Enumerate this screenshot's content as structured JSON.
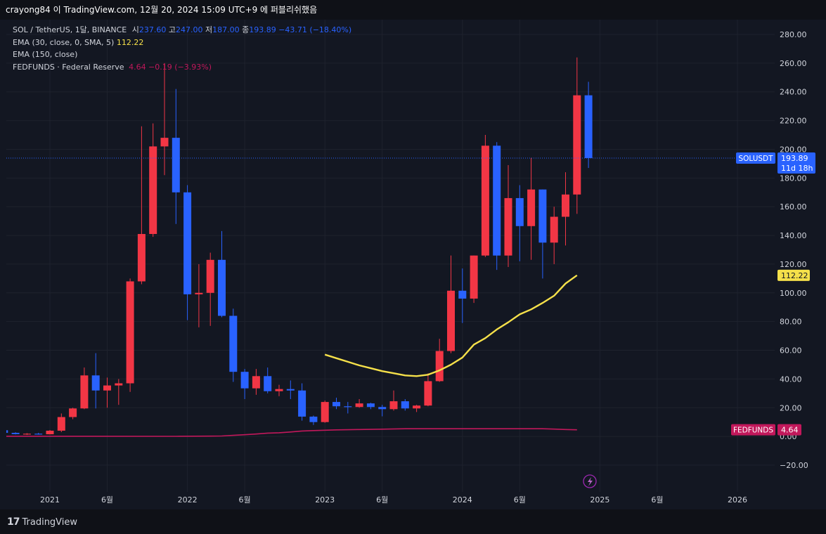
{
  "header": {
    "publisher_text": "crayong84 이 TradingView.com, 12월 20, 2024 15:09 UTC+9 에 퍼블리쉬했음"
  },
  "legend": {
    "symbol": "SOL / TetherUS, 1달, BINANCE",
    "open_label": "시",
    "open_value": "237.60",
    "high_label": "고",
    "high_value": "247.00",
    "low_label": "저",
    "low_value": "187.00",
    "close_label": "종",
    "close_value": "193.89",
    "change_value": "−43.71 (−18.40%)",
    "ema30_label": "EMA (30, close, 0, SMA, 5)",
    "ema30_value": "112.22",
    "ema150_label": "EMA (150, close)",
    "fed_label": "FEDFUNDS · Federal Reserve",
    "fed_value": "4.64",
    "fed_change": "−0.19 (−3.93%)"
  },
  "footer": {
    "brand": "TradingView"
  },
  "colors": {
    "up": "#f23645",
    "down": "#2962ff",
    "ema": "#f5e04a",
    "fed": "#c2185b",
    "grid": "#1e222d",
    "axis_text": "#d1d4dc"
  },
  "chart_data": {
    "type": "candlestick",
    "symbol": "SOLUSDT",
    "interval": "1 month",
    "ylim": [
      -25,
      295
    ],
    "y_ticks": [
      -20,
      0,
      20,
      40,
      60,
      80,
      100,
      120,
      140,
      160,
      180,
      200,
      220,
      240,
      260,
      280
    ],
    "y_tick_labels": [
      "−20.00",
      "0.00",
      "20.00",
      "40.00",
      "60.00",
      "80.00",
      "100.00",
      "120.00",
      "140.00",
      "160.00",
      "180.00",
      "200.00",
      "220.00",
      "240.00",
      "260.00",
      "280.00"
    ],
    "x_ticks": [
      {
        "label": "2021",
        "month": "2021-01"
      },
      {
        "label": "6월",
        "month": "2021-06"
      },
      {
        "label": "2022",
        "month": "2022-01"
      },
      {
        "label": "6월",
        "month": "2022-06"
      },
      {
        "label": "2023",
        "month": "2023-01"
      },
      {
        "label": "6월",
        "month": "2023-06"
      },
      {
        "label": "2024",
        "month": "2024-01"
      },
      {
        "label": "6월",
        "month": "2024-06"
      },
      {
        "label": "2025",
        "month": "2025-01"
      },
      {
        "label": "6월",
        "month": "2025-06"
      },
      {
        "label": "2026",
        "month": "2026-01"
      }
    ],
    "candles": [
      {
        "month": "2020-09",
        "o": 4.3,
        "h": 4.8,
        "l": 2.0,
        "c": 2.5
      },
      {
        "month": "2020-10",
        "o": 2.5,
        "h": 2.9,
        "l": 1.4,
        "c": 1.6
      },
      {
        "month": "2020-11",
        "o": 1.6,
        "h": 2.3,
        "l": 1.0,
        "c": 1.9
      },
      {
        "month": "2020-12",
        "o": 1.9,
        "h": 2.5,
        "l": 1.2,
        "c": 1.5
      },
      {
        "month": "2021-01",
        "o": 1.5,
        "h": 4.5,
        "l": 1.4,
        "c": 4.0
      },
      {
        "month": "2021-02",
        "o": 4.0,
        "h": 16.0,
        "l": 3.0,
        "c": 13.5
      },
      {
        "month": "2021-03",
        "o": 13.5,
        "h": 20.0,
        "l": 12.0,
        "c": 19.5
      },
      {
        "month": "2021-04",
        "o": 19.5,
        "h": 48.0,
        "l": 19.0,
        "c": 42.5
      },
      {
        "month": "2021-05",
        "o": 42.5,
        "h": 58.0,
        "l": 19.5,
        "c": 32.0
      },
      {
        "month": "2021-06",
        "o": 32.0,
        "h": 41.0,
        "l": 20.0,
        "c": 35.5
      },
      {
        "month": "2021-07",
        "o": 35.5,
        "h": 40.0,
        "l": 22.0,
        "c": 37.0
      },
      {
        "month": "2021-08",
        "o": 37.0,
        "h": 110.0,
        "l": 31.0,
        "c": 108.0
      },
      {
        "month": "2021-09",
        "o": 108.0,
        "h": 216.0,
        "l": 106.0,
        "c": 141.0
      },
      {
        "month": "2021-10",
        "o": 141.0,
        "h": 218.0,
        "l": 139.0,
        "c": 202.0
      },
      {
        "month": "2021-11",
        "o": 202.0,
        "h": 260.0,
        "l": 182.0,
        "c": 208.0
      },
      {
        "month": "2021-12",
        "o": 208.0,
        "h": 242.0,
        "l": 148.0,
        "c": 170.0
      },
      {
        "month": "2022-01",
        "o": 170.0,
        "h": 175.0,
        "l": 81.0,
        "c": 99.0
      },
      {
        "month": "2022-02",
        "o": 99.0,
        "h": 120.0,
        "l": 76.0,
        "c": 100.0
      },
      {
        "month": "2022-03",
        "o": 100.0,
        "h": 128.0,
        "l": 77.0,
        "c": 123.0
      },
      {
        "month": "2022-04",
        "o": 123.0,
        "h": 143.0,
        "l": 83.0,
        "c": 84.0
      },
      {
        "month": "2022-05",
        "o": 84.0,
        "h": 89.0,
        "l": 38.0,
        "c": 45.0
      },
      {
        "month": "2022-06",
        "o": 45.0,
        "h": 47.0,
        "l": 26.0,
        "c": 33.5
      },
      {
        "month": "2022-07",
        "o": 33.5,
        "h": 47.0,
        "l": 29.0,
        "c": 42.0
      },
      {
        "month": "2022-08",
        "o": 42.0,
        "h": 48.0,
        "l": 30.0,
        "c": 31.5
      },
      {
        "month": "2022-09",
        "o": 31.5,
        "h": 36.0,
        "l": 28.0,
        "c": 33.0
      },
      {
        "month": "2022-10",
        "o": 33.0,
        "h": 39.0,
        "l": 26.0,
        "c": 32.0
      },
      {
        "month": "2022-11",
        "o": 32.0,
        "h": 37.0,
        "l": 11.0,
        "c": 13.8
      },
      {
        "month": "2022-12",
        "o": 13.8,
        "h": 14.5,
        "l": 8.0,
        "c": 10.0
      },
      {
        "month": "2023-01",
        "o": 10.0,
        "h": 25.0,
        "l": 9.5,
        "c": 24.0
      },
      {
        "month": "2023-02",
        "o": 24.0,
        "h": 27.0,
        "l": 19.0,
        "c": 21.0
      },
      {
        "month": "2023-03",
        "o": 21.0,
        "h": 24.0,
        "l": 16.0,
        "c": 20.5
      },
      {
        "month": "2023-04",
        "o": 20.5,
        "h": 26.0,
        "l": 20.0,
        "c": 23.0
      },
      {
        "month": "2023-05",
        "o": 23.0,
        "h": 23.5,
        "l": 19.0,
        "c": 20.5
      },
      {
        "month": "2023-06",
        "o": 20.5,
        "h": 22.0,
        "l": 14.0,
        "c": 19.0
      },
      {
        "month": "2023-07",
        "o": 19.0,
        "h": 32.0,
        "l": 18.0,
        "c": 24.5
      },
      {
        "month": "2023-08",
        "o": 24.5,
        "h": 26.0,
        "l": 18.0,
        "c": 19.5
      },
      {
        "month": "2023-09",
        "o": 19.5,
        "h": 22.0,
        "l": 17.0,
        "c": 21.5
      },
      {
        "month": "2023-10",
        "o": 21.5,
        "h": 44.0,
        "l": 21.0,
        "c": 38.5
      },
      {
        "month": "2023-11",
        "o": 38.5,
        "h": 68.0,
        "l": 38.0,
        "c": 59.5
      },
      {
        "month": "2023-12",
        "o": 59.5,
        "h": 126.0,
        "l": 58.0,
        "c": 101.5
      },
      {
        "month": "2024-01",
        "o": 101.5,
        "h": 117.0,
        "l": 79.0,
        "c": 96.0
      },
      {
        "month": "2024-02",
        "o": 96.0,
        "h": 126.0,
        "l": 93.0,
        "c": 126.0
      },
      {
        "month": "2024-03",
        "o": 126.0,
        "h": 210.0,
        "l": 125.0,
        "c": 202.5
      },
      {
        "month": "2024-04",
        "o": 202.5,
        "h": 205.0,
        "l": 116.0,
        "c": 126.0
      },
      {
        "month": "2024-05",
        "o": 126.0,
        "h": 189.0,
        "l": 118.0,
        "c": 166.0
      },
      {
        "month": "2024-06",
        "o": 166.0,
        "h": 175.0,
        "l": 122.0,
        "c": 146.5
      },
      {
        "month": "2024-07",
        "o": 146.5,
        "h": 194.0,
        "l": 123.0,
        "c": 172.0
      },
      {
        "month": "2024-08",
        "o": 172.0,
        "h": 172.0,
        "l": 110.0,
        "c": 135.0
      },
      {
        "month": "2024-09",
        "o": 135.0,
        "h": 160.0,
        "l": 120.0,
        "c": 153.0
      },
      {
        "month": "2024-10",
        "o": 153.0,
        "h": 184.0,
        "l": 133.0,
        "c": 168.5
      },
      {
        "month": "2024-11",
        "o": 168.5,
        "h": 264.0,
        "l": 155.0,
        "c": 237.6
      },
      {
        "month": "2024-12",
        "o": 237.6,
        "h": 247.0,
        "l": 187.0,
        "c": 193.89
      }
    ],
    "series": [
      {
        "name": "EMA (30, close, 0, SMA, 5)",
        "color": "#f5e04a",
        "points": [
          {
            "month": "2023-01",
            "v": 57.0
          },
          {
            "month": "2023-02",
            "v": 54.5
          },
          {
            "month": "2023-03",
            "v": 52.0
          },
          {
            "month": "2023-04",
            "v": 49.5
          },
          {
            "month": "2023-05",
            "v": 47.5
          },
          {
            "month": "2023-06",
            "v": 45.5
          },
          {
            "month": "2023-07",
            "v": 44.0
          },
          {
            "month": "2023-08",
            "v": 42.5
          },
          {
            "month": "2023-09",
            "v": 42.0
          },
          {
            "month": "2023-10",
            "v": 43.0
          },
          {
            "month": "2023-11",
            "v": 46.0
          },
          {
            "month": "2023-12",
            "v": 50.0
          },
          {
            "month": "2024-01",
            "v": 55.0
          },
          {
            "month": "2024-02",
            "v": 64.0
          },
          {
            "month": "2024-03",
            "v": 68.5
          },
          {
            "month": "2024-04",
            "v": 74.5
          },
          {
            "month": "2024-05",
            "v": 79.5
          },
          {
            "month": "2024-06",
            "v": 85.0
          },
          {
            "month": "2024-07",
            "v": 88.5
          },
          {
            "month": "2024-08",
            "v": 93.0
          },
          {
            "month": "2024-09",
            "v": 98.0
          },
          {
            "month": "2024-10",
            "v": 106.5
          },
          {
            "month": "2024-11",
            "v": 112.22
          }
        ]
      },
      {
        "name": "FEDFUNDS · Federal Reserve",
        "color": "#c2185b",
        "points": [
          {
            "month": "2020-09",
            "v": 0.09
          },
          {
            "month": "2021-12",
            "v": 0.08
          },
          {
            "month": "2022-03",
            "v": 0.2
          },
          {
            "month": "2022-04",
            "v": 0.33
          },
          {
            "month": "2022-05",
            "v": 0.77
          },
          {
            "month": "2022-06",
            "v": 1.21
          },
          {
            "month": "2022-07",
            "v": 1.68
          },
          {
            "month": "2022-08",
            "v": 2.33
          },
          {
            "month": "2022-09",
            "v": 2.56
          },
          {
            "month": "2022-10",
            "v": 3.08
          },
          {
            "month": "2022-11",
            "v": 3.78
          },
          {
            "month": "2022-12",
            "v": 4.1
          },
          {
            "month": "2023-02",
            "v": 4.57
          },
          {
            "month": "2023-04",
            "v": 4.83
          },
          {
            "month": "2023-06",
            "v": 5.08
          },
          {
            "month": "2023-08",
            "v": 5.33
          },
          {
            "month": "2024-08",
            "v": 5.33
          },
          {
            "month": "2024-09",
            "v": 5.13
          },
          {
            "month": "2024-10",
            "v": 4.83
          },
          {
            "month": "2024-11",
            "v": 4.64
          }
        ]
      }
    ],
    "price_tags": [
      {
        "name": "SOLUSDT",
        "value": 193.89,
        "label": "SOLUSDT",
        "price_text": "193.89",
        "countdown": "11d 18h",
        "color": "#2962ff"
      },
      {
        "name": "EMA",
        "value": 112.22,
        "price_text": "112.22",
        "color": "#f5e04a"
      },
      {
        "name": "FEDFUNDS",
        "value": 4.64,
        "label": "FEDFUNDS",
        "price_text": "4.64",
        "color": "#c2185b"
      }
    ]
  }
}
